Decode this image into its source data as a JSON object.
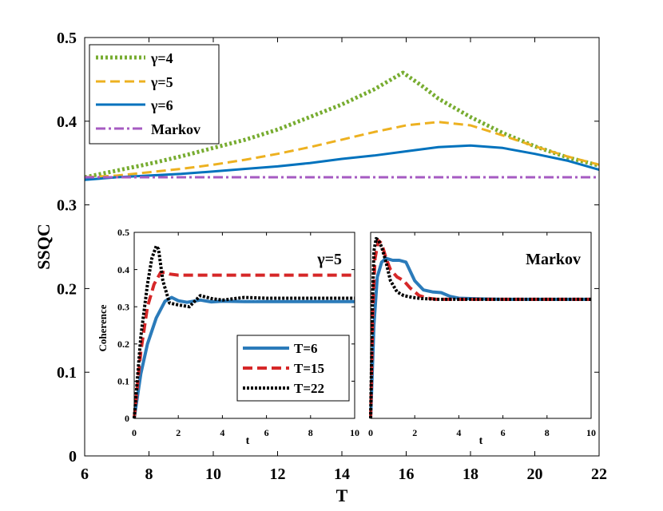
{
  "chart_data": [
    {
      "type": "line",
      "id": "main",
      "xlabel": "T",
      "ylabel": "SSQC",
      "xlim": [
        6,
        22
      ],
      "ylim": [
        0,
        0.5
      ],
      "xticks": [
        6,
        8,
        10,
        12,
        14,
        16,
        18,
        20,
        22
      ],
      "yticks": [
        0,
        0.1,
        0.2,
        0.3,
        0.4,
        0.5
      ],
      "xtick_labels": [
        "6",
        "8",
        "10",
        "12",
        "14",
        "16",
        "18",
        "20",
        "22"
      ],
      "ytick_labels": [
        "0",
        "0.1",
        "0.2",
        "0.3",
        "0.4",
        "0.5"
      ],
      "legend_position": "top-left",
      "series": [
        {
          "name": "γ=4",
          "color": "#77ac30",
          "dash": "dotted",
          "x": [
            6,
            7,
            8,
            9,
            10,
            11,
            12,
            13,
            14,
            15,
            15.9,
            16.5,
            17,
            18,
            19,
            20,
            21,
            22
          ],
          "y": [
            0.333,
            0.341,
            0.349,
            0.358,
            0.368,
            0.378,
            0.39,
            0.405,
            0.42,
            0.438,
            0.458,
            0.442,
            0.427,
            0.405,
            0.386,
            0.37,
            0.357,
            0.347
          ]
        },
        {
          "name": "γ=5",
          "color": "#edb120",
          "dash": "dashed",
          "x": [
            6,
            7,
            8,
            9,
            10,
            11,
            12,
            13,
            14,
            15,
            16,
            17,
            18,
            19,
            20,
            21,
            22
          ],
          "y": [
            0.333,
            0.335,
            0.339,
            0.343,
            0.348,
            0.354,
            0.361,
            0.369,
            0.378,
            0.387,
            0.395,
            0.399,
            0.395,
            0.383,
            0.37,
            0.358,
            0.348
          ]
        },
        {
          "name": "γ=6",
          "color": "#0072bd",
          "dash": "solid",
          "x": [
            6,
            7,
            8,
            9,
            10,
            11,
            12,
            13,
            14,
            15,
            16,
            17,
            18,
            19,
            20,
            21,
            22
          ],
          "y": [
            0.33,
            0.333,
            0.335,
            0.337,
            0.34,
            0.343,
            0.346,
            0.35,
            0.355,
            0.359,
            0.364,
            0.369,
            0.371,
            0.368,
            0.361,
            0.353,
            0.342
          ]
        },
        {
          "name": "Markov",
          "color": "#a65bc2",
          "dash": "dashdot",
          "x": [
            6,
            22
          ],
          "y": [
            0.333,
            0.333
          ]
        }
      ]
    },
    {
      "type": "line",
      "id": "inset1",
      "annotation": "γ=5",
      "ylabel": "Coherence",
      "xlabel": "t",
      "xlim": [
        0,
        10
      ],
      "ylim": [
        0,
        0.5
      ],
      "xticks": [
        0,
        2,
        4,
        6,
        8,
        10
      ],
      "yticks": [
        0,
        0.1,
        0.2,
        0.3,
        0.4,
        0.5
      ],
      "xtick_labels": [
        "0",
        "2",
        "4",
        "6",
        "8",
        "10"
      ],
      "ytick_labels": [
        "0",
        "0.1",
        "0.2",
        "0.3",
        "0.4",
        "0.5"
      ],
      "legend_position": "bottom-right",
      "series": [
        {
          "name": "T=6",
          "color": "#2b7bba",
          "dash": "solid",
          "x": [
            0,
            0.3,
            0.6,
            1.0,
            1.4,
            1.7,
            2.0,
            2.4,
            3.0,
            3.5,
            4.0,
            5.0,
            6.0,
            7.0,
            8.0,
            9.0,
            10.0
          ],
          "y": [
            0,
            0.12,
            0.2,
            0.27,
            0.315,
            0.325,
            0.316,
            0.312,
            0.318,
            0.313,
            0.315,
            0.314,
            0.314,
            0.314,
            0.314,
            0.314,
            0.314
          ]
        },
        {
          "name": "T=15",
          "color": "#d62728",
          "dash": "dashed",
          "x": [
            0,
            0.3,
            0.6,
            0.9,
            1.2,
            1.4,
            1.6,
            2.0,
            2.5,
            3.0,
            4.0,
            5.0,
            6.0,
            8.0,
            10.0
          ],
          "y": [
            0,
            0.18,
            0.3,
            0.36,
            0.392,
            0.392,
            0.388,
            0.385,
            0.385,
            0.385,
            0.385,
            0.385,
            0.385,
            0.385,
            0.385
          ]
        },
        {
          "name": "T=22",
          "color": "#000000",
          "dash": "dotted",
          "x": [
            0,
            0.3,
            0.6,
            0.8,
            1.0,
            1.1,
            1.3,
            1.6,
            2.0,
            2.5,
            3.0,
            3.5,
            4.0,
            5.0,
            6.0,
            8.0,
            10.0
          ],
          "y": [
            0,
            0.22,
            0.36,
            0.43,
            0.463,
            0.455,
            0.37,
            0.31,
            0.305,
            0.3,
            0.33,
            0.322,
            0.318,
            0.325,
            0.323,
            0.323,
            0.323
          ]
        }
      ]
    },
    {
      "type": "line",
      "id": "inset2",
      "annotation": "Markov",
      "xlabel": "t",
      "xlim": [
        0,
        10
      ],
      "ylim": [
        0,
        0.5
      ],
      "xticks": [
        0,
        2,
        4,
        6,
        8,
        10
      ],
      "xtick_labels": [
        "0",
        "2",
        "4",
        "6",
        "8",
        "10"
      ],
      "series": [
        {
          "name": "T=6",
          "color": "#2b7bba",
          "dash": "solid",
          "x": [
            0,
            0.15,
            0.3,
            0.5,
            0.7,
            1.0,
            1.3,
            1.6,
            2.0,
            2.4,
            2.8,
            3.2,
            3.6,
            4.0,
            5.0,
            6.0,
            8.0,
            10.0
          ],
          "y": [
            0,
            0.25,
            0.38,
            0.42,
            0.43,
            0.425,
            0.425,
            0.42,
            0.37,
            0.345,
            0.34,
            0.338,
            0.328,
            0.323,
            0.321,
            0.32,
            0.32,
            0.32
          ]
        },
        {
          "name": "T=15",
          "color": "#d62728",
          "dash": "dashed",
          "x": [
            0,
            0.1,
            0.2,
            0.35,
            0.5,
            0.7,
            0.9,
            1.2,
            1.5,
            1.8,
            2.2,
            2.6,
            3.0,
            4.0,
            6.0,
            8.0,
            10.0
          ],
          "y": [
            0,
            0.3,
            0.43,
            0.478,
            0.47,
            0.43,
            0.4,
            0.38,
            0.37,
            0.35,
            0.33,
            0.323,
            0.32,
            0.32,
            0.32,
            0.32,
            0.32
          ]
        },
        {
          "name": "T=22",
          "color": "#000000",
          "dash": "dotted",
          "x": [
            0,
            0.08,
            0.15,
            0.25,
            0.35,
            0.5,
            0.7,
            0.9,
            1.2,
            1.5,
            1.9,
            2.3,
            3.0,
            4.0,
            6.0,
            8.0,
            10.0
          ],
          "y": [
            0,
            0.3,
            0.45,
            0.483,
            0.48,
            0.46,
            0.42,
            0.37,
            0.34,
            0.33,
            0.325,
            0.322,
            0.32,
            0.32,
            0.32,
            0.32,
            0.32
          ]
        }
      ]
    }
  ]
}
